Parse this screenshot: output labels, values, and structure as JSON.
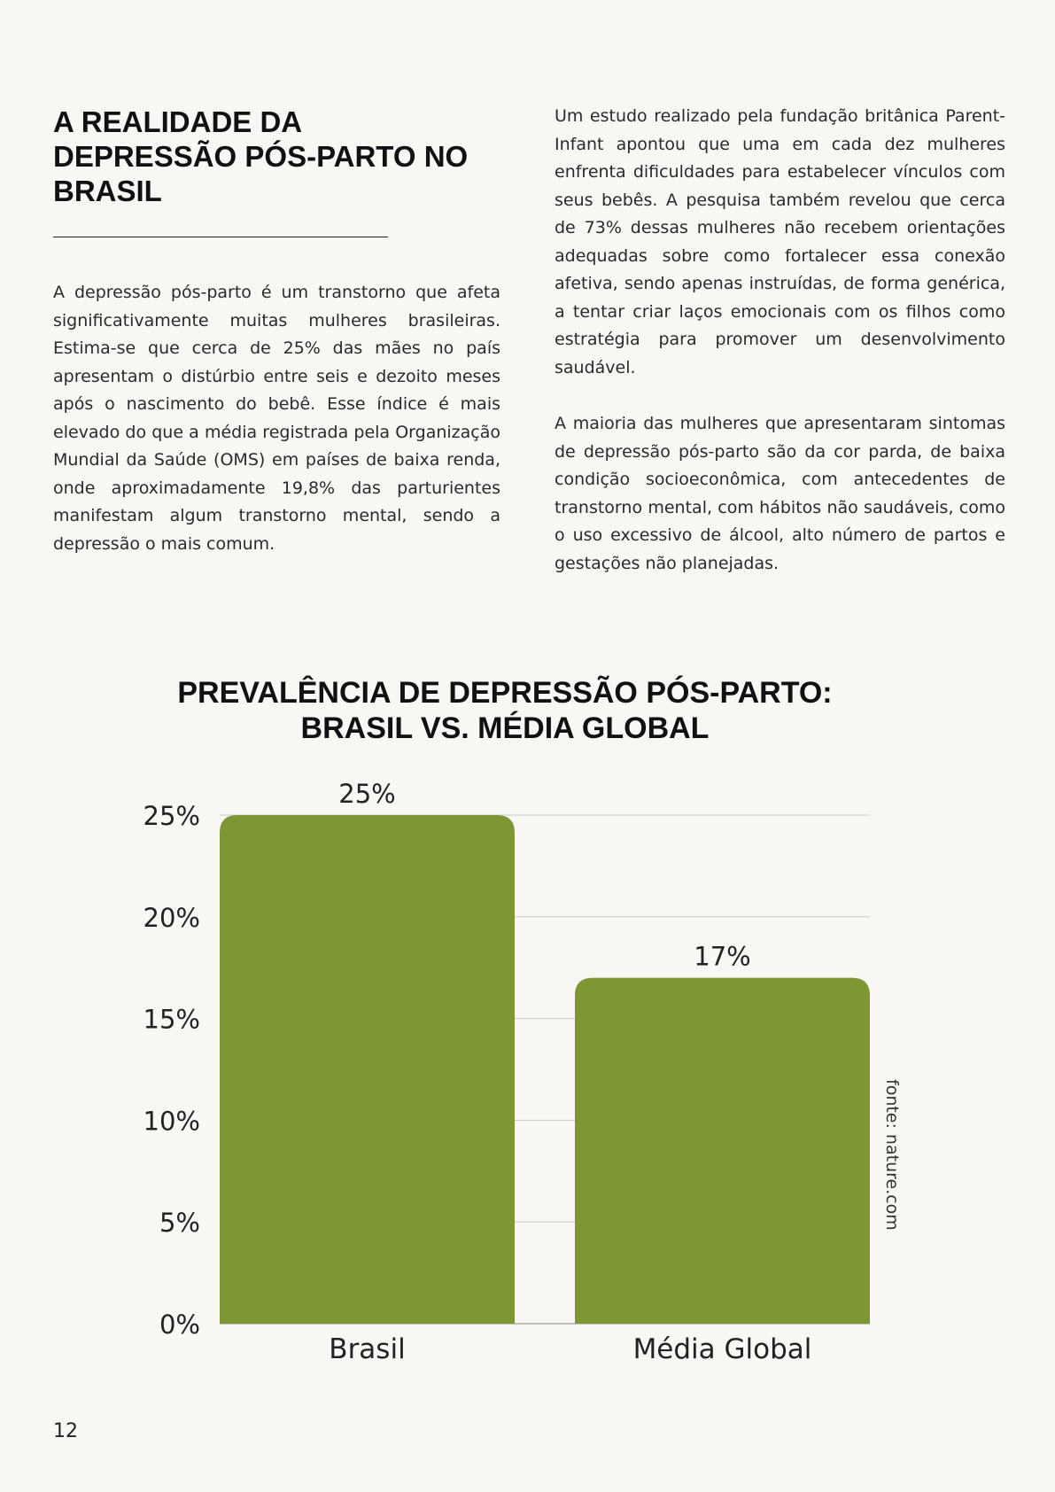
{
  "article": {
    "heading": " A REALIDADE DA\nDEPRESSÃO PÓS-PARTO NO\nBRASIL",
    "paragraph_left": " A depressão pós-parto é um transtorno que afeta significativamente muitas mulheres brasileiras. Estima-se que cerca de 25% das mães no país apresentam o distúrbio entre seis e dezoito meses após o nascimento do bebê. Esse índice é mais elevado do que a média registrada pela Organização Mundial da Saúde (OMS) em países de baixa renda, onde aproximadamente 19,8% das parturientes manifestam algum transtorno mental, sendo a depressão o mais comum.",
    "paragraph_right_1": "  Um estudo realizado pela fundação britânica Parent-Infant apontou que uma em cada dez mulheres enfrenta dificuldades para estabelecer vínculos com seus bebês. A pesquisa também revelou que cerca de 73% dessas mulheres não recebem orientações adequadas sobre como fortalecer essa conexão afetiva, sendo apenas instruídas, de forma genérica, a tentar criar laços emocionais com os filhos como estratégia para promover um desenvolvimento saudável.",
    "paragraph_right_2": " A maioria das mulheres que apresentaram sintomas de depressão pós-parto são da cor parda, de baixa condição socioeconômica, com antecedentes de transtorno mental, com hábitos não saudáveis, como o uso excessivo de álcool, alto número de partos e gestações não planejadas."
  },
  "chart_data": {
    "type": "bar",
    "title": [
      "PREVALÊNCIA DE DEPRESSÃO PÓS-PARTO:",
      "BRASIL VS. MÉDIA GLOBAL"
    ],
    "categories": [
      "Brasil",
      "Média Global"
    ],
    "values": [
      25,
      17
    ],
    "value_labels": [
      "25%",
      "17%"
    ],
    "y_ticks": [
      0,
      5,
      10,
      15,
      20,
      25
    ],
    "y_tick_labels": [
      "0%",
      "5%",
      "10%",
      "15%",
      "20%",
      "25%"
    ],
    "ylim": [
      0,
      25
    ],
    "grid": true,
    "bar_color": "#7d9734",
    "source": "fonte: nature.com"
  },
  "page": {
    "number": "12"
  }
}
